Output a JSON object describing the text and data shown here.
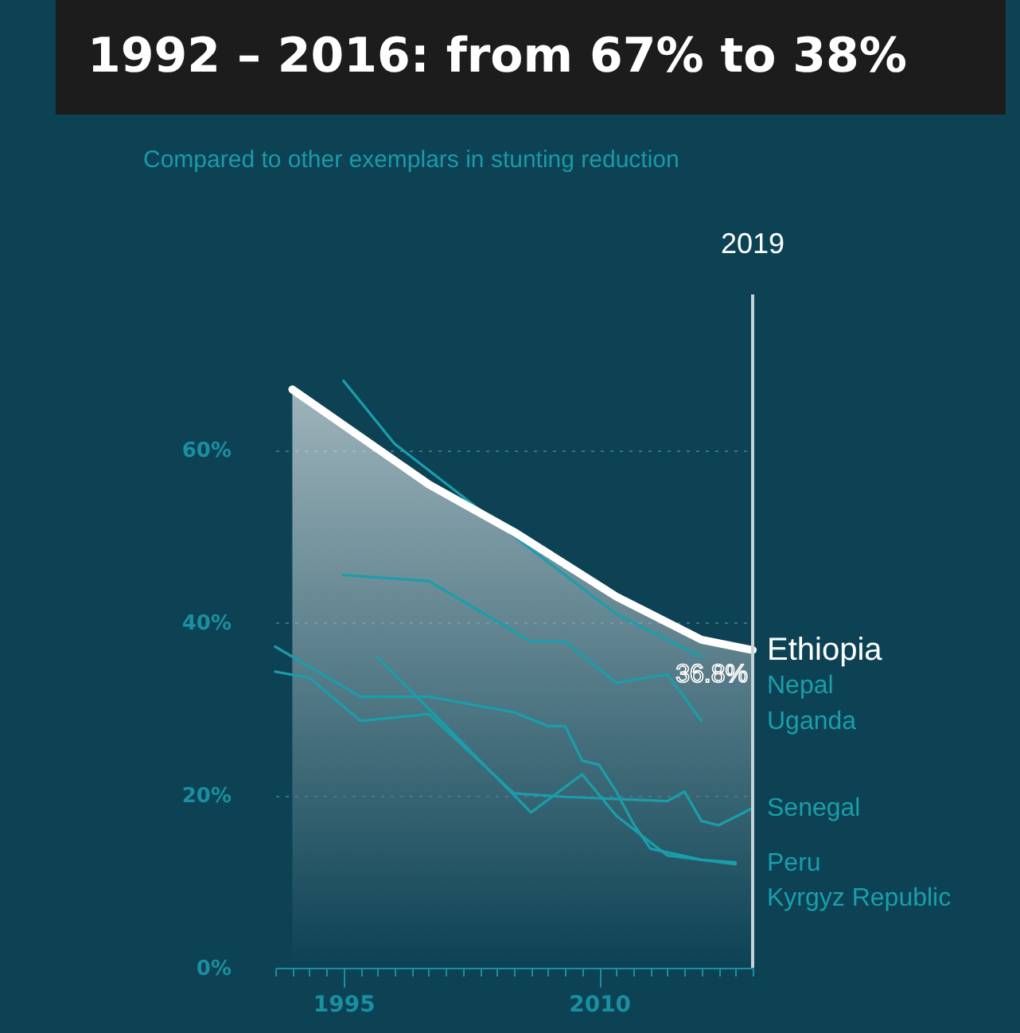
{
  "chart_data": {
    "type": "line",
    "title": "1992 – 2016: from 67% to 38%",
    "subtitle": "Compared to other exemplars in stunting reduction",
    "xlim": [
      1991,
      2019
    ],
    "xticks": [
      {
        "value": 1991,
        "label": null
      },
      {
        "value": 1992,
        "label": null
      },
      {
        "value": 1993,
        "label": null
      },
      {
        "value": 1994,
        "label": null
      },
      {
        "value": 1995,
        "label": "1995"
      },
      {
        "value": 1996,
        "label": null
      },
      {
        "value": 1997,
        "label": null
      },
      {
        "value": 1998,
        "label": null
      },
      {
        "value": 1999,
        "label": null
      },
      {
        "value": 2000,
        "label": null
      },
      {
        "value": 2001,
        "label": null
      },
      {
        "value": 2002,
        "label": null
      },
      {
        "value": 2003,
        "label": null
      },
      {
        "value": 2004,
        "label": null
      },
      {
        "value": 2005,
        "label": null
      },
      {
        "value": 2006,
        "label": null
      },
      {
        "value": 2007,
        "label": null
      },
      {
        "value": 2008,
        "label": null
      },
      {
        "value": 2009,
        "label": null
      },
      {
        "value": 2010,
        "label": "2010"
      },
      {
        "value": 2011,
        "label": null
      },
      {
        "value": 2012,
        "label": null
      },
      {
        "value": 2013,
        "label": null
      },
      {
        "value": 2014,
        "label": null
      },
      {
        "value": 2015,
        "label": null
      },
      {
        "value": 2016,
        "label": null
      },
      {
        "value": 2017,
        "label": null
      },
      {
        "value": 2018,
        "label": null
      },
      {
        "value": 2019,
        "label": null
      }
    ],
    "ylim": [
      0,
      78
    ],
    "yticks": [
      {
        "value": 0,
        "label": "0%"
      },
      {
        "value": 20,
        "label": "20%"
      },
      {
        "value": 40,
        "label": "40%"
      },
      {
        "value": 60,
        "label": "60%"
      }
    ],
    "grid": "y",
    "series": [
      {
        "name": "Ethiopia",
        "type": "area",
        "color": "#ffffff",
        "x": [
          1992,
          2000,
          2005,
          2011,
          2016,
          2019
        ],
        "values": [
          67,
          56,
          50.5,
          43,
          38,
          36.8
        ]
      },
      {
        "name": "Nepal",
        "color": "#1a9eab",
        "x": [
          1995,
          1998,
          2005,
          2011,
          2016
        ],
        "values": [
          68,
          60.7,
          50,
          41,
          36
        ]
      },
      {
        "name": "Uganda",
        "color": "#1a9eab",
        "x": [
          1995,
          2000,
          2006,
          2008,
          2011,
          2014,
          2016
        ],
        "values": [
          45.5,
          44.8,
          37.8,
          37.8,
          33,
          34,
          28.6
        ]
      },
      {
        "name": "Senegal",
        "color": "#1a9eab",
        "x": [
          1991,
          1993,
          1996,
          2000,
          2005,
          2008,
          2014,
          2015,
          2016,
          2017,
          2019
        ],
        "values": [
          34.3,
          33.6,
          28.6,
          29.4,
          20.2,
          19.8,
          19.3,
          20.4,
          17,
          16.5,
          18.5
        ]
      },
      {
        "name": "Peru",
        "color": "#1a9eab",
        "x": [
          1991,
          1996,
          2000,
          2005,
          2007,
          2008,
          2009,
          2010,
          2011,
          2012,
          2013,
          2016,
          2018
        ],
        "values": [
          37.2,
          31.4,
          31.4,
          29.6,
          28,
          28,
          24,
          23.5,
          20.4,
          16.7,
          13.8,
          12.5,
          12.2
        ]
      },
      {
        "name": "Kyrgyz Republic",
        "color": "#1a9eab",
        "x": [
          1997,
          2006,
          2009,
          2011,
          2014,
          2018
        ],
        "values": [
          36,
          18,
          22.4,
          17.6,
          13,
          12
        ]
      }
    ],
    "ref_lines": [
      {
        "axis": "x",
        "value": 2019,
        "label": "2019",
        "color": "#c8d2d6"
      }
    ],
    "annotations": [
      {
        "text": "36.8%",
        "x": 2019,
        "y": 36.8
      }
    ]
  }
}
